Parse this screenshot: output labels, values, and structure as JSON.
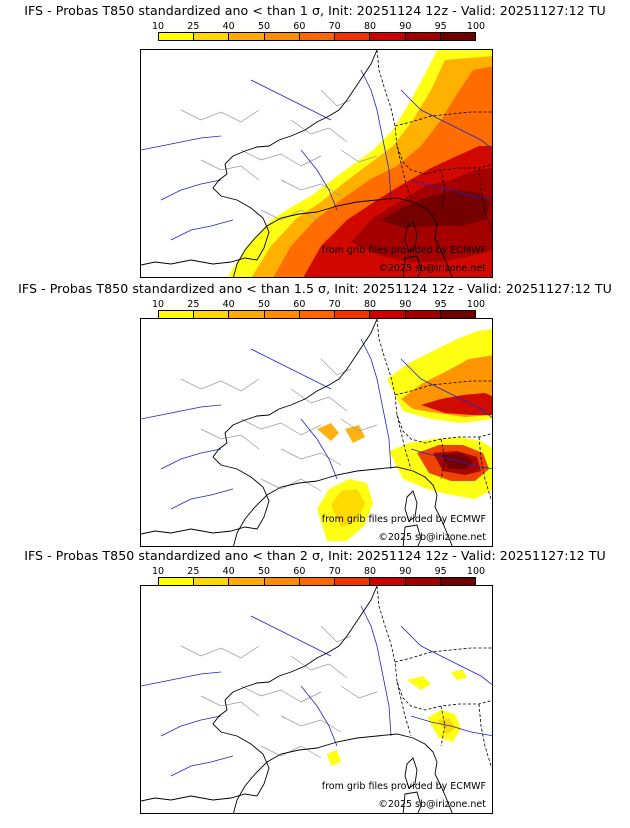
{
  "panels": [
    {
      "title": "IFS - Probas T850  standardized ano < than 1 σ, Init: 20251124 12z - Valid: 20251127:12 TU",
      "threshold_sigma": 1,
      "probability_intensity": "high"
    },
    {
      "title": "IFS - Probas T850  standardized ano < than 1.5 σ, Init: 20251124 12z - Valid: 20251127:12 TU",
      "threshold_sigma": 1.5,
      "probability_intensity": "medium"
    },
    {
      "title": "IFS - Probas T850  standardized ano < than 2 σ, Init: 20251124 12z - Valid: 20251127:12 TU",
      "threshold_sigma": 2,
      "probability_intensity": "low"
    }
  ],
  "colorbar": {
    "ticks": [
      "10",
      "25",
      "40",
      "50",
      "60",
      "70",
      "80",
      "90",
      "95",
      "100"
    ],
    "colors": [
      "#ffff00",
      "#ffd700",
      "#ffaa00",
      "#ff8c00",
      "#ff6600",
      "#ee3300",
      "#cc0000",
      "#a00000",
      "#700000"
    ]
  },
  "credits": {
    "source": "from grib files provided by ECMWF",
    "copyright": "©2025 sb@irizone.net"
  },
  "colors": {
    "coast": "#000000",
    "rivers": "#2222cc",
    "borders": "#999999"
  }
}
